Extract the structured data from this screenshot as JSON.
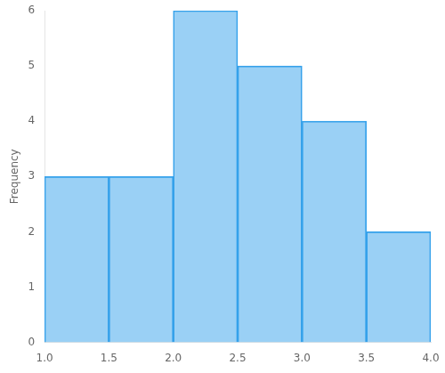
{
  "chart_data": {
    "type": "histogram",
    "bins": [
      1.0,
      1.5,
      2.0,
      2.5,
      3.0,
      3.5,
      4.0
    ],
    "values": [
      3,
      3,
      6,
      5,
      4,
      2
    ],
    "ylabel": "Frequency",
    "xlim": [
      1.0,
      4.0
    ],
    "ylim": [
      0,
      6
    ],
    "xticks": [
      {
        "value": 1.0,
        "label": "1.0"
      },
      1.5,
      {
        "value": 2.0,
        "label": "2.0"
      },
      2.5,
      {
        "value": 3.0,
        "label": "3.0"
      },
      3.5,
      {
        "value": 4.0,
        "label": "4.0"
      }
    ],
    "yticks": [
      0,
      1,
      2,
      3,
      4,
      5,
      6
    ],
    "grid": false
  }
}
